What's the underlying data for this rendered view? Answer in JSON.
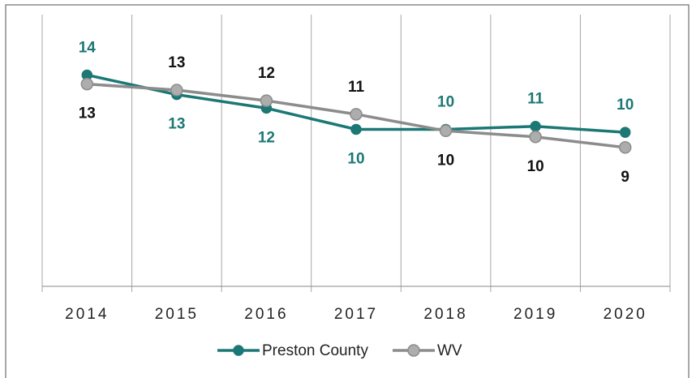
{
  "chart_data": {
    "type": "line",
    "categories": [
      "2014",
      "2015",
      "2016",
      "2017",
      "2018",
      "2019",
      "2020"
    ],
    "series": [
      {
        "name": "Preston County",
        "color": "#1b7875",
        "values": [
          14.0,
          12.7,
          11.8,
          10.4,
          10.4,
          10.6,
          10.2
        ],
        "value_labels": [
          "14",
          "13",
          "12",
          "10",
          "10",
          "11",
          "10"
        ]
      },
      {
        "name": "WV",
        "color": "#8c8c8c",
        "marker_fill": "#adadad",
        "values": [
          13.4,
          13.0,
          12.3,
          11.4,
          10.3,
          9.9,
          9.2
        ],
        "value_labels": [
          "13",
          "13",
          "12",
          "11",
          "10",
          "10",
          "9"
        ]
      }
    ],
    "ylim": [
      0,
      18
    ],
    "grid": true
  }
}
